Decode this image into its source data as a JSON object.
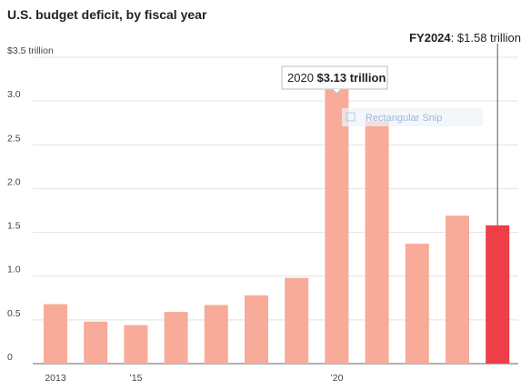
{
  "chart_data": {
    "type": "bar",
    "title": "U.S. budget deficit, by fiscal year",
    "y_unit_label": "$3.5 trillion",
    "ylim": [
      0,
      3.5
    ],
    "y_ticks": [
      {
        "value": 3.5,
        "label": "$3.5 trillion"
      },
      {
        "value": 3.0,
        "label": "3.0"
      },
      {
        "value": 2.5,
        "label": "2.5"
      },
      {
        "value": 2.0,
        "label": "2.0"
      },
      {
        "value": 1.5,
        "label": "1.5"
      },
      {
        "value": 1.0,
        "label": "1.0"
      },
      {
        "value": 0.5,
        "label": "0.5"
      },
      {
        "value": 0,
        "label": "0"
      }
    ],
    "categories": [
      "2013",
      "2014",
      "2015",
      "2016",
      "2017",
      "2018",
      "2019",
      "2020",
      "2021",
      "2022",
      "2023",
      "2024"
    ],
    "values": [
      0.68,
      0.48,
      0.44,
      0.59,
      0.67,
      0.78,
      0.98,
      3.13,
      2.77,
      1.37,
      1.69,
      1.58
    ],
    "x_tick_labels": [
      {
        "category": "2013",
        "label": "2013"
      },
      {
        "category": "2015",
        "label": "’15"
      },
      {
        "category": "2020",
        "label": "’20"
      }
    ],
    "colors": {
      "bar": "#f7ab98",
      "highlight": "#ee3e47",
      "text": "#222222"
    },
    "highlight_category": "2024",
    "annotations": {
      "peak": {
        "category": "2020",
        "year": "2020",
        "value_text": "$3.13 trillion"
      },
      "latest": {
        "category": "2024",
        "label": "FY2024",
        "sep": ": ",
        "value_text": "$1.58 trillion"
      }
    },
    "grid": true
  },
  "overlay": {
    "snip_label": "Rectangular Snip"
  }
}
